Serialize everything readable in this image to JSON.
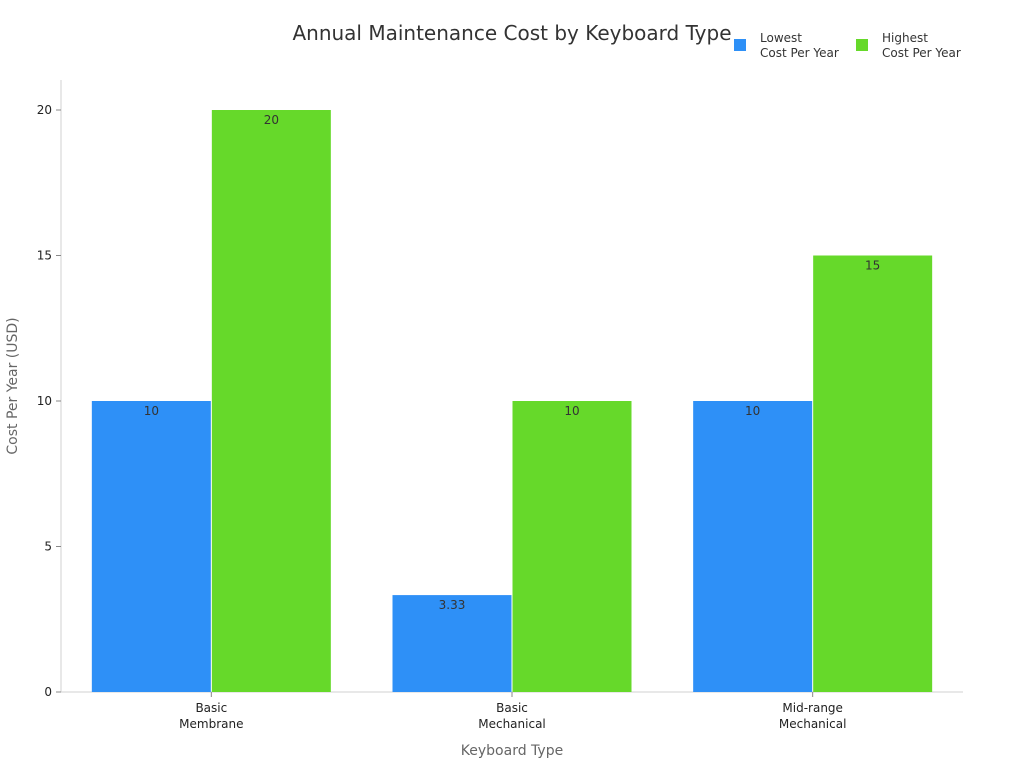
{
  "chart_data": {
    "type": "bar",
    "title": "Annual Maintenance Cost by Keyboard Type",
    "xlabel": "Keyboard Type",
    "ylabel": "Cost Per Year (USD)",
    "ylim": [
      0,
      20
    ],
    "yticks": [
      0,
      5,
      10,
      15,
      20
    ],
    "categories": [
      [
        "Basic",
        "Membrane"
      ],
      [
        "Basic",
        "Mechanical"
      ],
      [
        "Mid-range",
        "Mechanical"
      ]
    ],
    "series": [
      {
        "name": [
          "Lowest",
          "Cost Per Year"
        ],
        "color": "#2e90f7",
        "values": [
          10,
          3.33,
          10
        ],
        "labels": [
          "10",
          "3.33",
          "10"
        ]
      },
      {
        "name": [
          "Highest",
          "Cost Per Year"
        ],
        "color": "#66d92a",
        "values": [
          20,
          10,
          15
        ],
        "labels": [
          "20",
          "10",
          "15"
        ]
      }
    ],
    "legend_position": "top-right",
    "grid": false
  }
}
